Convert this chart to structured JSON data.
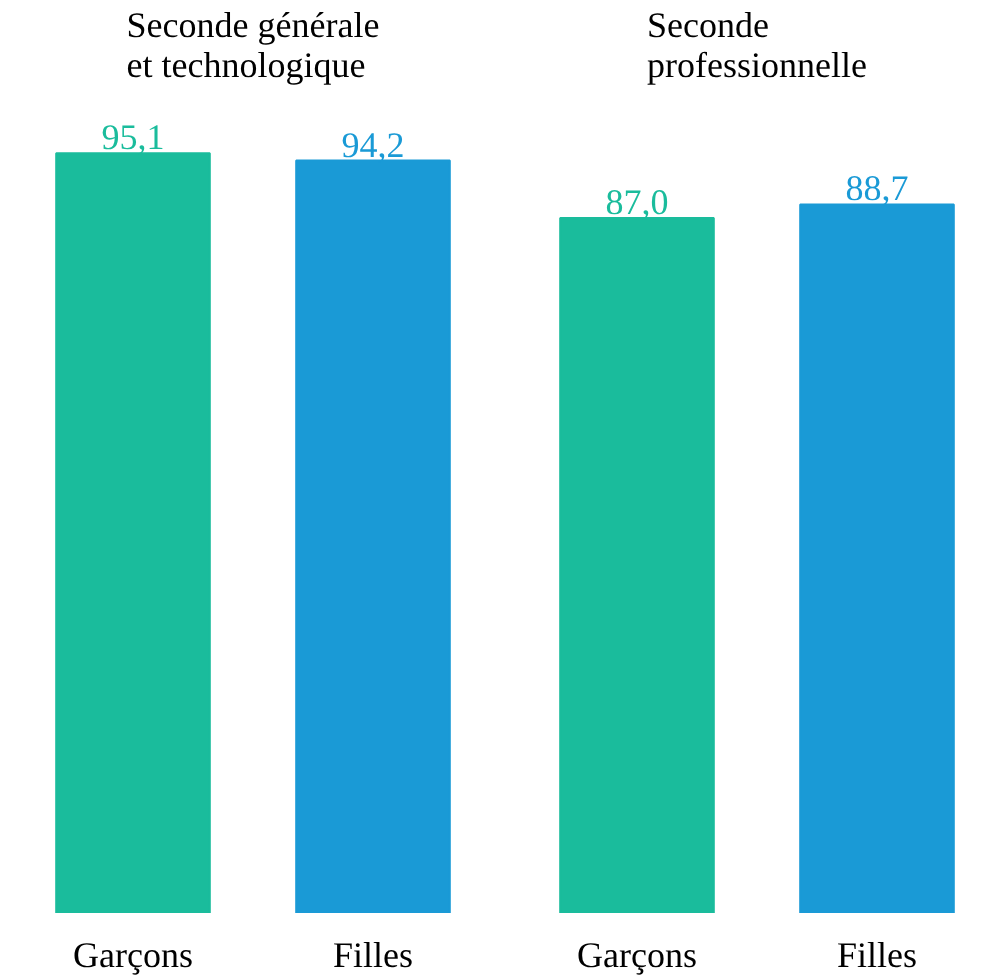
{
  "chart_data": [
    {
      "type": "bar",
      "title": "Seconde générale et technologique",
      "categories": [
        "Garçons",
        "Filles"
      ],
      "values": [
        95.1,
        94.2
      ],
      "colors": [
        "#1abc9c",
        "#1a9ad6"
      ],
      "data_labels": true,
      "value_labels": [
        "95,1",
        "94,2"
      ]
    },
    {
      "type": "bar",
      "title": "Seconde professionnelle",
      "categories": [
        "Garçons",
        "Filles"
      ],
      "values": [
        87.0,
        88.7
      ],
      "colors": [
        "#1abc9c",
        "#1a9ad6"
      ],
      "data_labels": true,
      "value_labels": [
        "87,0",
        "88,7"
      ]
    }
  ]
}
